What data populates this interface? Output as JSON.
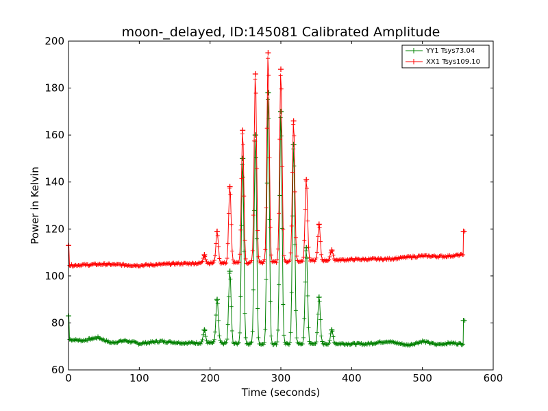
{
  "chart_data": {
    "type": "line",
    "title": "moon-_delayed, ID:145081 Calibrated Amplitude",
    "xlabel": "Time (seconds)",
    "ylabel": "Power in Kelvin",
    "xlim": [
      0,
      600
    ],
    "ylim": [
      60,
      200
    ],
    "xticks": [
      0,
      100,
      200,
      300,
      400,
      500,
      600
    ],
    "yticks": [
      60,
      80,
      100,
      120,
      140,
      160,
      180,
      200
    ],
    "grid": false,
    "legend_position": "top-right",
    "series": [
      {
        "name": "YY1 Tsys73.04",
        "color": "#008000",
        "baseline": [
          [
            0,
            73
          ],
          [
            20,
            72.5
          ],
          [
            42,
            73.8
          ],
          [
            60,
            71.5
          ],
          [
            80,
            72.5
          ],
          [
            100,
            71.2
          ],
          [
            130,
            72.2
          ],
          [
            160,
            71.5
          ],
          [
            190,
            71.5
          ],
          [
            220,
            71.3
          ],
          [
            260,
            71
          ],
          [
            300,
            71
          ],
          [
            340,
            71
          ],
          [
            380,
            71.2
          ],
          [
            420,
            71
          ],
          [
            450,
            72.2
          ],
          [
            480,
            70.5
          ],
          [
            500,
            72.2
          ],
          [
            520,
            70.8
          ],
          [
            540,
            71.5
          ],
          [
            557,
            71
          ]
        ],
        "peaks": [
          {
            "x": 0,
            "y": 83
          },
          {
            "x": 192,
            "y": 77
          },
          {
            "x": 210,
            "y": 90
          },
          {
            "x": 228,
            "y": 102
          },
          {
            "x": 246,
            "y": 150
          },
          {
            "x": 264,
            "y": 160
          },
          {
            "x": 282,
            "y": 178
          },
          {
            "x": 300,
            "y": 170
          },
          {
            "x": 318,
            "y": 156
          },
          {
            "x": 336,
            "y": 112
          },
          {
            "x": 354,
            "y": 91
          },
          {
            "x": 372,
            "y": 77
          },
          {
            "x": 558,
            "y": 81
          }
        ]
      },
      {
        "name": "XX1 Tsys109.10",
        "color": "#ff0000",
        "baseline": [
          [
            0,
            104.5
          ],
          [
            50,
            105
          ],
          [
            100,
            104.5
          ],
          [
            150,
            105.2
          ],
          [
            200,
            105.5
          ],
          [
            250,
            105.5
          ],
          [
            300,
            106
          ],
          [
            350,
            106.5
          ],
          [
            400,
            107
          ],
          [
            450,
            107.2
          ],
          [
            500,
            108.5
          ],
          [
            530,
            108.3
          ],
          [
            557,
            109
          ]
        ],
        "peaks": [
          {
            "x": 0,
            "y": 113
          },
          {
            "x": 192,
            "y": 109
          },
          {
            "x": 210,
            "y": 119
          },
          {
            "x": 228,
            "y": 138
          },
          {
            "x": 246,
            "y": 162
          },
          {
            "x": 264,
            "y": 186
          },
          {
            "x": 282,
            "y": 195
          },
          {
            "x": 300,
            "y": 188
          },
          {
            "x": 318,
            "y": 166
          },
          {
            "x": 336,
            "y": 141
          },
          {
            "x": 354,
            "y": 122
          },
          {
            "x": 372,
            "y": 111
          },
          {
            "x": 558,
            "y": 119
          }
        ]
      }
    ]
  }
}
